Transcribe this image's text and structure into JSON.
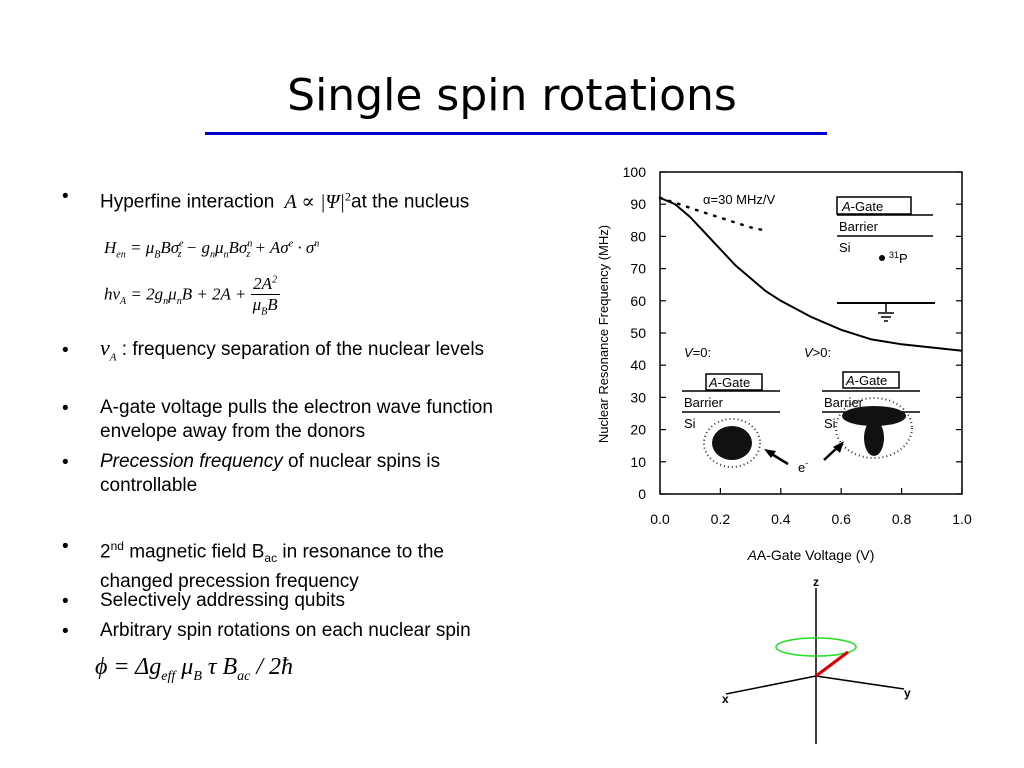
{
  "slide": {
    "title": "Single spin rotations"
  },
  "bullets": {
    "b1_before": "Hyperfine interaction",
    "b1_after": "at the nucleus",
    "b2_after": ": frequency separation of the nuclear levels",
    "b3_line1": "A-gate voltage pulls the electron wave function",
    "b3_line2": "envelope away from the donors",
    "b4_italic": "Precession frequency",
    "b4_rest": " of nuclear spins is",
    "b4_line2": "controllable",
    "b5_pre": "2",
    "b5_sup": "nd",
    "b5_mid": " magnetic field B",
    "b5_sub": "ac",
    "b5_post": " in resonance to the",
    "b5_line2": "changed precession frequency",
    "b6": "Selectively addressing qubits",
    "b7": "Arbitrary spin rotations on each nuclear spin"
  },
  "figure": {
    "ylabel": "Nuclear Resonance Frequency (MHz)",
    "xlabel": "A-Gate Voltage (V)",
    "alpha_label": "α=30 MHz/V",
    "gate_label": "-Gate",
    "gate_letter": "A",
    "barrier": "Barrier",
    "si": "Si",
    "donor_label": "P",
    "donor_mass": "31",
    "v0_label": "=0:",
    "vpos_label": ">0:",
    "v_letter": "V",
    "electron": "e",
    "electron_sup": "-"
  },
  "axes3d": {
    "x": "x",
    "y": "y",
    "z": "z"
  },
  "chart_data": {
    "type": "line",
    "xlabel": "A-Gate Voltage (V)",
    "ylabel": "Nuclear Resonance Frequency (MHz)",
    "xlim": [
      0,
      1.0
    ],
    "ylim": [
      0,
      100
    ],
    "xticks": [
      "0.0",
      "0.2",
      "0.4",
      "0.6",
      "0.8",
      "1.0"
    ],
    "yticks": [
      "0",
      "10",
      "20",
      "30",
      "40",
      "50",
      "60",
      "70",
      "80",
      "90",
      "100"
    ],
    "series": [
      {
        "x": [
          0.0,
          0.05,
          0.1,
          0.15,
          0.2,
          0.25,
          0.3,
          0.35,
          0.4,
          0.5,
          0.6,
          0.7,
          0.8,
          0.9,
          1.0
        ],
        "y": [
          92,
          90,
          86,
          81,
          76,
          71,
          67,
          63,
          60,
          55,
          51,
          48,
          46.5,
          45.5,
          44.5
        ]
      },
      {
        "style": "dotted",
        "x": [
          0.0,
          0.02,
          0.05,
          0.08,
          0.11,
          0.15,
          0.2,
          0.25,
          0.3,
          0.34
        ],
        "y": [
          92,
          91.3,
          90.5,
          89.5,
          88.5,
          87.3,
          85.8,
          84.3,
          82.8,
          82
        ]
      }
    ]
  }
}
